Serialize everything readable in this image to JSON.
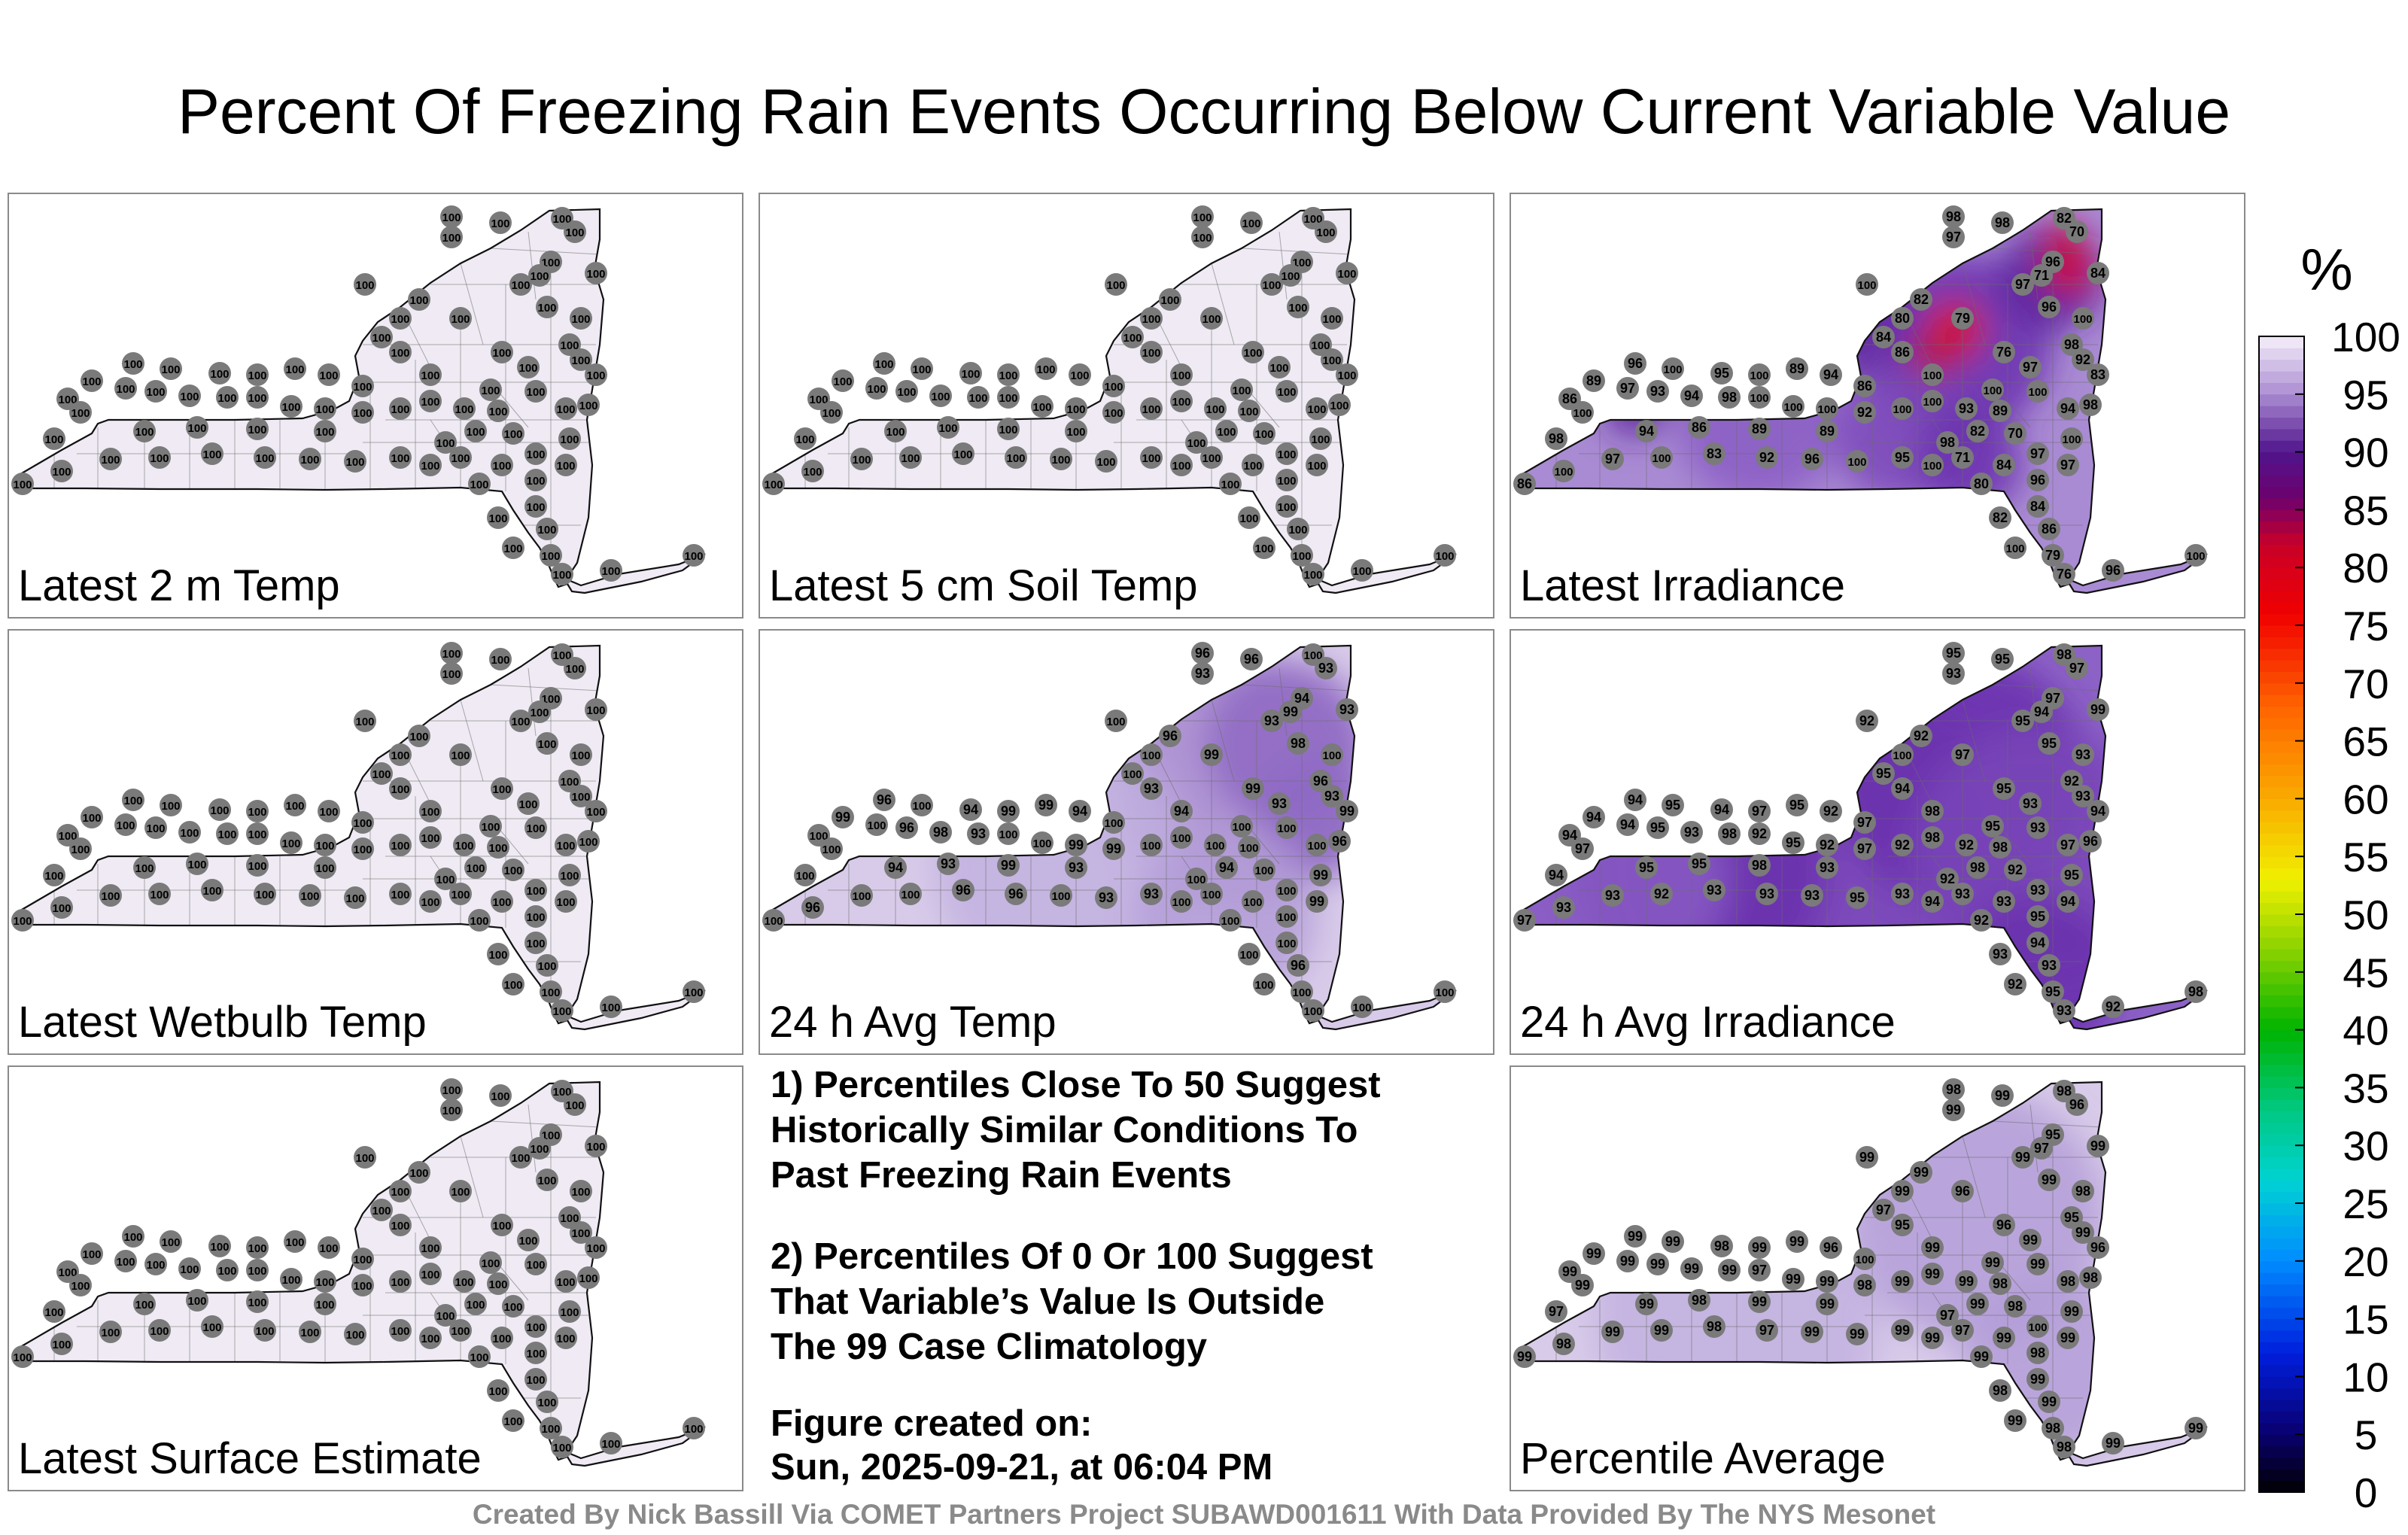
{
  "title": "Percent Of Freezing Rain Events Occurring Below Current Variable Value",
  "panels": [
    {
      "label": "Latest 2 m Temp",
      "mode": "uniform",
      "value": 100
    },
    {
      "label": "Latest 5 cm Soil Temp",
      "mode": "uniform",
      "value": 100
    },
    {
      "label": "Latest Irradiance",
      "mode": "irr",
      "values": [
        98,
        98,
        82,
        70,
        97,
        100,
        84,
        96,
        97,
        71,
        80,
        82,
        84,
        86,
        100,
        79,
        76,
        96,
        100,
        98,
        97,
        100,
        83,
        92,
        96,
        100,
        95,
        100,
        89,
        94,
        86,
        89,
        86,
        100,
        97,
        93,
        94,
        98,
        100,
        100,
        100,
        92,
        100,
        100,
        93,
        89,
        100,
        94
      ]
    },
    {
      "label": "Latest Wetbulb Temp",
      "mode": "uniform",
      "value": 100
    },
    {
      "label": "24 h Avg Temp",
      "mode": "avgtemp",
      "values": [
        96,
        96,
        100,
        93,
        93,
        100,
        93,
        94,
        93,
        99,
        100,
        96,
        100,
        93,
        94,
        99,
        99,
        98,
        100,
        96,
        93,
        100,
        99,
        93,
        96,
        100,
        94,
        99,
        99,
        94,
        100,
        99,
        100,
        100,
        100,
        96,
        98,
        93,
        100,
        100,
        99,
        99,
        100,
        100,
        100,
        100,
        100,
        100,
        96,
        100,
        94,
        100,
        100,
        99,
        100,
        100,
        99,
        100,
        100,
        100,
        100,
        96,
        100,
        100,
        100,
        100,
        100,
        100,
        100,
        100
      ]
    },
    {
      "label": "24 h Avg Irradiance",
      "mode": "avgirr",
      "values": [
        95,
        95,
        98,
        97,
        93,
        92,
        99,
        97,
        95,
        94,
        100,
        92,
        95,
        94,
        98,
        97,
        95,
        95,
        93,
        92,
        93,
        95,
        94,
        93,
        94,
        95,
        94,
        97,
        95,
        92,
        97,
        94,
        94,
        97,
        94,
        95,
        93,
        98,
        92,
        95,
        92,
        97,
        92,
        98,
        92,
        98,
        93,
        97,
        96,
        92,
        98,
        92,
        93,
        95,
        93,
        95,
        94,
        93,
        92,
        93,
        94,
        93,
        92,
        95,
        93,
        92,
        98,
        94,
        93,
        92,
        93,
        93,
        93,
        95,
        93,
        94,
        93
      ]
    },
    {
      "label": "Latest Surface Estimate",
      "mode": "uniform",
      "value": 100
    },
    {
      "label": "Percentile Average",
      "mode": "avg",
      "values": [
        98,
        99,
        98,
        96,
        99,
        99,
        99,
        95,
        99,
        97,
        99,
        99,
        97,
        95,
        99,
        96,
        96,
        99,
        98,
        95,
        99,
        99,
        96,
        99,
        99,
        99,
        98,
        99,
        99,
        96,
        100,
        99,
        99,
        99,
        99,
        99,
        99,
        99,
        97,
        99,
        99,
        98,
        99,
        99,
        99,
        98,
        99,
        98,
        98,
        97,
        99,
        98,
        100,
        99,
        99,
        98,
        99,
        97,
        99,
        98,
        99,
        99,
        99,
        98,
        98,
        99,
        99,
        97,
        99,
        99,
        98,
        97,
        99,
        99,
        99,
        99,
        99,
        99,
        98,
        99,
        99
      ]
    }
  ],
  "notes": {
    "note1": "1) Percentiles Close To 50 Suggest\nHistorically Similar Conditions To\nPast Freezing Rain Events",
    "note2": "2) Percentiles Of 0 Or 100 Suggest\nThat Variable’s Value Is Outside\nThe 99 Case Climatology",
    "created_label": "Figure created on:",
    "created_date": "Sun, 2025-09-21, at 06:04 PM"
  },
  "colorbar": {
    "unit": "%",
    "ticks": [
      100,
      95,
      90,
      85,
      80,
      75,
      70,
      65,
      60,
      55,
      50,
      45,
      40,
      35,
      30,
      25,
      20,
      15,
      10,
      5,
      0
    ],
    "range": [
      0,
      100
    ]
  },
  "footer": "Created By Nick Bassill Via COMET Partners Project SUBAWD001611 With Data Provided By The NYS Mesonet",
  "colors": {
    "station_dot": "#7a7a7a",
    "map_fill_light": "#efeaf4",
    "map_fill_purple": "#7a45b8",
    "map_fill_red": "#e0101c"
  }
}
